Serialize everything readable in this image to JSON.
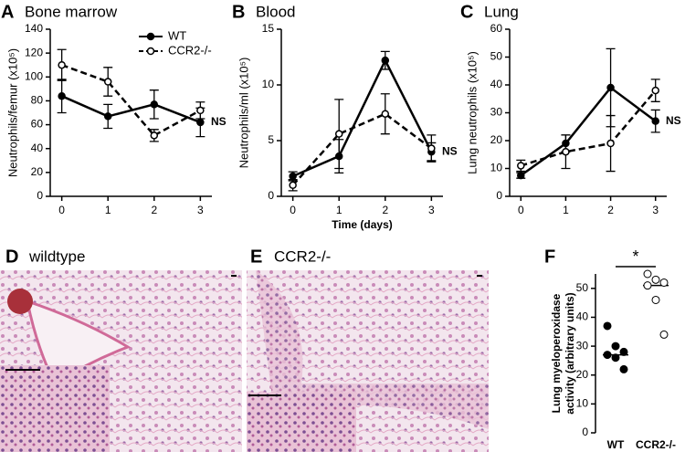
{
  "chart_data": [
    {
      "type": "line",
      "panel": "A",
      "title": "Bone marrow",
      "ylabel": "Neutrophils/femur (x10⁵)",
      "x": [
        0,
        1,
        2,
        3
      ],
      "xlim": [
        -0.25,
        3.25
      ],
      "xticks": [
        0,
        1,
        2,
        3
      ],
      "ylim": [
        0,
        140
      ],
      "yticks": [
        0,
        20,
        40,
        60,
        80,
        100,
        120,
        140
      ],
      "legend": "top-right",
      "annotation": "NS",
      "series": [
        {
          "name": "WT",
          "color": "#000000",
          "line_style": "solid",
          "marker": "filled",
          "values": [
            84,
            67,
            77,
            62
          ],
          "errors": [
            14,
            10,
            12,
            12
          ]
        },
        {
          "name": "CCR2-/-",
          "color": "#000000",
          "line_style": "dashed",
          "marker": "open",
          "values": [
            110,
            96,
            51,
            72
          ],
          "errors": [
            13,
            12,
            5,
            7
          ]
        }
      ]
    },
    {
      "type": "line",
      "panel": "B",
      "title": "Blood",
      "ylabel": "Neutrophils/ml (x10⁵)",
      "xlabel": "Time (days)",
      "x": [
        0,
        1,
        2,
        3
      ],
      "xlim": [
        -0.25,
        3.25
      ],
      "xticks": [
        0,
        1,
        2,
        3
      ],
      "ylim": [
        0,
        15
      ],
      "yticks": [
        0,
        5,
        10,
        15
      ],
      "annotation": "NS",
      "series": [
        {
          "name": "WT",
          "color": "#000000",
          "line_style": "solid",
          "marker": "filled",
          "values": [
            1.8,
            3.6,
            12.2,
            4.0
          ],
          "errors": [
            0.4,
            1.5,
            0.8,
            0.8
          ]
        },
        {
          "name": "CCR2-/-",
          "color": "#000000",
          "line_style": "dashed",
          "marker": "open",
          "values": [
            1.0,
            5.6,
            7.4,
            4.3
          ],
          "errors": [
            0.5,
            3.1,
            1.8,
            1.2
          ]
        }
      ]
    },
    {
      "type": "line",
      "panel": "C",
      "title": "Lung",
      "ylabel": "Lung neutrophils (x10⁵)",
      "x": [
        0,
        1,
        2,
        3
      ],
      "xlim": [
        -0.25,
        3.25
      ],
      "xticks": [
        0,
        1,
        2,
        3
      ],
      "ylim": [
        0,
        60
      ],
      "yticks": [
        0,
        10,
        20,
        30,
        40,
        50,
        60
      ],
      "annotation": "NS",
      "series": [
        {
          "name": "WT",
          "color": "#000000",
          "line_style": "solid",
          "marker": "filled",
          "values": [
            7.5,
            19,
            39,
            27
          ],
          "errors": [
            1,
            3,
            14,
            4
          ]
        },
        {
          "name": "CCR2-/-",
          "color": "#000000",
          "line_style": "dashed",
          "marker": "open",
          "values": [
            11,
            16,
            19,
            38
          ],
          "errors": [
            2,
            6,
            10,
            4
          ]
        }
      ]
    },
    {
      "type": "dot",
      "panel": "F",
      "ylabel": [
        "Lung myeloperoxidase",
        "activity (arbitrary units)"
      ],
      "ylim": [
        0,
        55
      ],
      "yticks": [
        0,
        10,
        20,
        30,
        40,
        50
      ],
      "annotation": "*",
      "groups": [
        {
          "name": "WT",
          "color": "#000000",
          "marker": "filled",
          "values": [
            37,
            30,
            28,
            27,
            26,
            22
          ],
          "median": 27
        },
        {
          "name": "CCR2-/-",
          "color": "#000000",
          "marker": "open",
          "values": [
            55,
            53,
            52,
            51,
            46,
            34
          ],
          "median": 51
        }
      ]
    }
  ],
  "images": [
    {
      "panel": "D",
      "title": "wildtype"
    },
    {
      "panel": "E",
      "title": "CCR2-/-"
    }
  ]
}
